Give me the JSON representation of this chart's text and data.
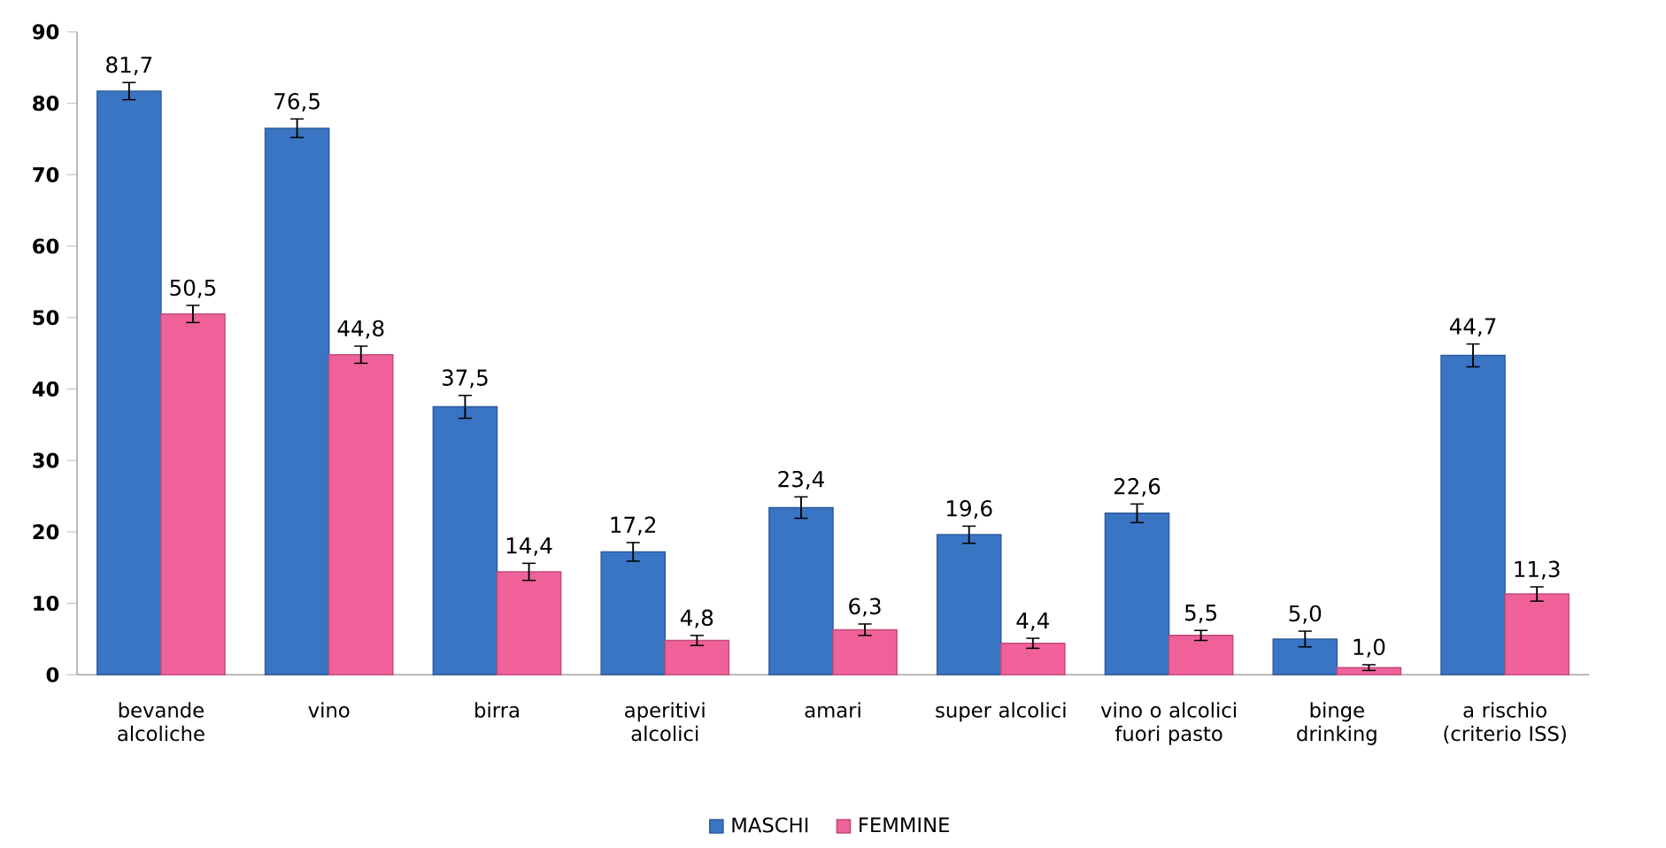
{
  "chart_data": {
    "type": "bar",
    "categories": [
      "bevande alcoliche",
      "vino",
      "birra",
      "aperitivi alcolici",
      "amari",
      "super alcolici",
      "vino o alcolici fuori pasto",
      "binge drinking",
      "a rischio (criterio ISS)"
    ],
    "series": [
      {
        "name": "MASCHI",
        "color": "#3a75c4",
        "values": [
          81.7,
          76.5,
          37.5,
          17.2,
          23.4,
          19.6,
          22.6,
          5.0,
          44.7
        ],
        "errors": [
          1.2,
          1.3,
          1.6,
          1.3,
          1.5,
          1.2,
          1.3,
          1.1,
          1.6
        ],
        "value_labels": [
          "81,7",
          "76,5",
          "37,5",
          "17,2",
          "23,4",
          "19,6",
          "22,6",
          "5,0",
          "44,7"
        ]
      },
      {
        "name": "FEMMINE",
        "color": "#f0619a",
        "values": [
          50.5,
          44.8,
          14.4,
          4.8,
          6.3,
          4.4,
          5.5,
          1.0,
          11.3
        ],
        "errors": [
          1.2,
          1.2,
          1.2,
          0.7,
          0.8,
          0.7,
          0.7,
          0.4,
          1.0
        ],
        "value_labels": [
          "50,5",
          "44,8",
          "14,4",
          "4,8",
          "6,3",
          "4,4",
          "5,5",
          "1,0",
          "11,3"
        ]
      }
    ],
    "ylim": [
      0,
      90
    ],
    "yticks": [
      0,
      10,
      20,
      30,
      40,
      50,
      60,
      70,
      80,
      90
    ],
    "grid": false,
    "legend": "bottom"
  }
}
